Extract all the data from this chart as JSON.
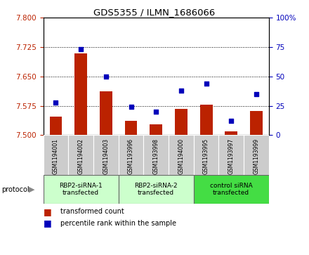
{
  "title": "GDS5355 / ILMN_1686066",
  "samples": [
    "GSM1194001",
    "GSM1194002",
    "GSM1194003",
    "GSM1193996",
    "GSM1193998",
    "GSM1194000",
    "GSM1193995",
    "GSM1193997",
    "GSM1193999"
  ],
  "bar_values": [
    7.548,
    7.71,
    7.612,
    7.537,
    7.527,
    7.568,
    7.578,
    7.51,
    7.562
  ],
  "dot_values": [
    28,
    73,
    50,
    24,
    20,
    38,
    44,
    12,
    35
  ],
  "ylim_left": [
    7.5,
    7.8
  ],
  "ylim_right": [
    0,
    100
  ],
  "yticks_left": [
    7.5,
    7.575,
    7.65,
    7.725,
    7.8
  ],
  "yticks_right": [
    0,
    25,
    50,
    75,
    100
  ],
  "grid_lines": [
    7.575,
    7.65,
    7.725
  ],
  "bar_color": "#bb2200",
  "dot_color": "#0000bb",
  "bar_bottom": 7.5,
  "groups": [
    {
      "label": "RBP2-siRNA-1\ntransfected",
      "start": 0,
      "end": 3,
      "color": "#ccffcc"
    },
    {
      "label": "RBP2-siRNA-2\ntransfected",
      "start": 3,
      "end": 6,
      "color": "#ccffcc"
    },
    {
      "label": "control siRNA\ntransfected",
      "start": 6,
      "end": 9,
      "color": "#44dd44"
    }
  ],
  "protocol_label": "protocol",
  "legend_bar_label": "transformed count",
  "legend_dot_label": "percentile rank within the sample",
  "cell_bg": "#cccccc",
  "plot_bg": "#ffffff"
}
